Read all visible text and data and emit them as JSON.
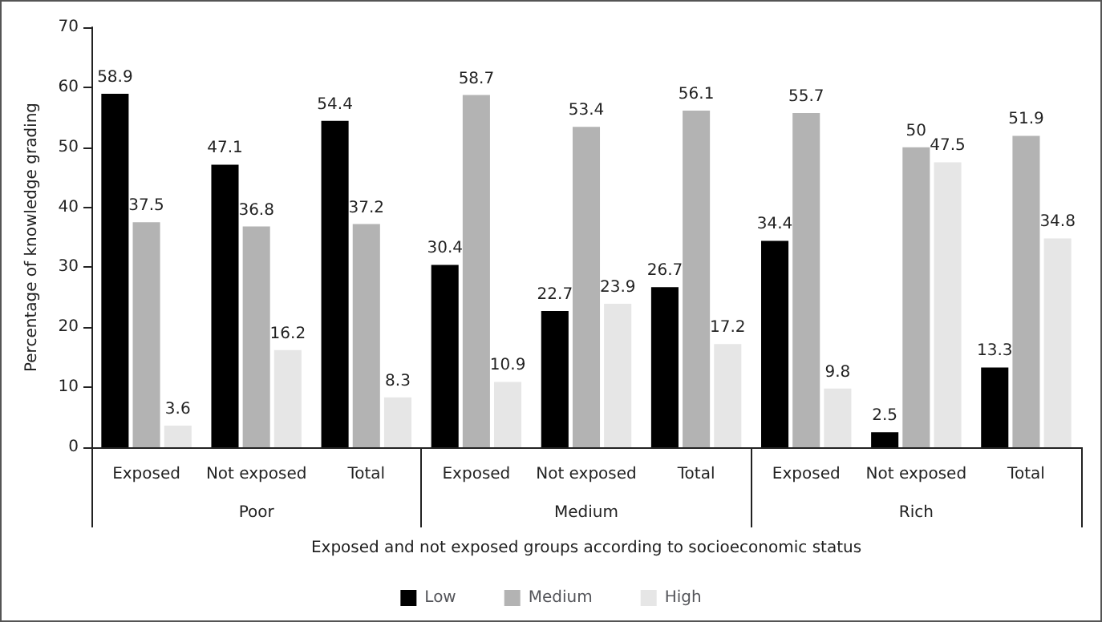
{
  "chart_data": {
    "type": "bar",
    "xlabel": "Exposed and not exposed groups according to socioeconomic status",
    "ylabel": "Percentage of knowledge grading",
    "categories": [
      "Exposed",
      "Not exposed",
      "Total",
      "Exposed",
      "Not exposed",
      "Total",
      "Exposed",
      "Not exposed",
      "Total"
    ],
    "annotations": [
      "Poor",
      "Medium",
      "Rich"
    ],
    "series": [
      {
        "name": "Low",
        "color": "#000000",
        "values": [
          58.9,
          47.1,
          54.4,
          30.4,
          22.7,
          26.7,
          34.4,
          2.5,
          13.3
        ]
      },
      {
        "name": "Medium",
        "color": "#b3b3b3",
        "values": [
          37.5,
          36.8,
          37.2,
          58.7,
          53.4,
          56.1,
          55.7,
          50,
          51.9
        ]
      },
      {
        "name": "High",
        "color": "#e6e6e6",
        "values": [
          3.6,
          16.2,
          8.3,
          10.9,
          23.9,
          17.2,
          9.8,
          47.5,
          34.8
        ]
      }
    ],
    "ylim": [
      0,
      70
    ],
    "yticks": [
      0,
      10,
      20,
      30,
      40,
      50,
      60,
      70
    ],
    "grid": false,
    "legend": "bottom",
    "data_labels": true
  }
}
